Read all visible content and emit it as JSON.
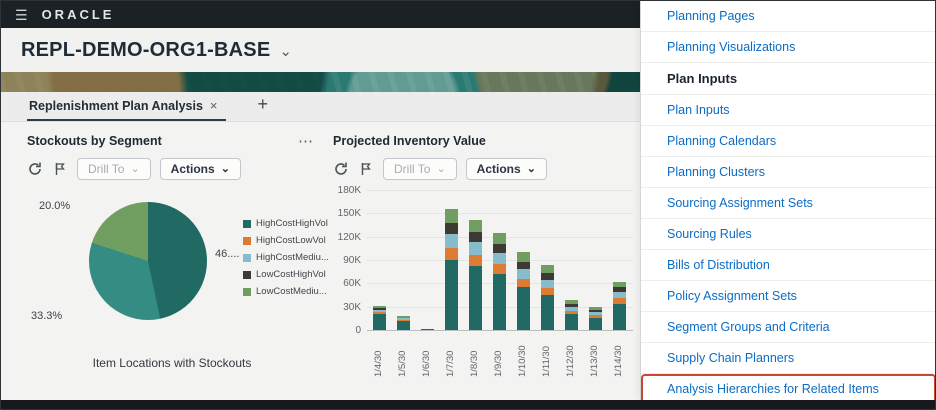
{
  "icons": {
    "hamburger": "☰",
    "chevron_down": "⌄",
    "close": "×",
    "add_tab": "+",
    "overflow": "⋯"
  },
  "topbar": {
    "brand": "ORACLE"
  },
  "header": {
    "plan_title": "REPL-DEMO-ORG1-BASE"
  },
  "tabs": {
    "active_label": "Replenishment Plan Analysis"
  },
  "stockouts_panel": {
    "title": "Stockouts by Segment",
    "drill_to_label": "Drill To",
    "actions_label": "Actions",
    "caption": "Item Locations with Stockouts"
  },
  "projected_panel": {
    "title": "Projected Inventory Value",
    "drill_to_label": "Drill To",
    "actions_label": "Actions"
  },
  "chart_data": [
    {
      "type": "pie",
      "title": "Stockouts by Segment",
      "values": [
        46.7,
        33.3,
        20.0
      ],
      "slice_labels": [
        "46....",
        "33.3%",
        "20.0%"
      ],
      "colors": [
        "#206a63",
        "#348c83",
        "#709e60"
      ],
      "legend_position": "right",
      "legend": [
        {
          "label": "HighCostHighVol",
          "color": "#206a63"
        },
        {
          "label": "HighCostLowVol",
          "color": "#dd7b33"
        },
        {
          "label": "HighCostMediu...",
          "color": "#86bccb"
        },
        {
          "label": "LowCostHighVol",
          "color": "#3d3933"
        },
        {
          "label": "LowCostMediu...",
          "color": "#709e60"
        }
      ],
      "caption": "Item Locations with Stockouts"
    },
    {
      "type": "bar",
      "stacked": true,
      "title": "Projected Inventory Value",
      "categories": [
        "1/4/30",
        "1/5/30",
        "1/6/30",
        "1/7/30",
        "1/8/30",
        "1/9/30",
        "1/10/30",
        "1/11/30",
        "1/12/30",
        "1/13/30",
        "1/14/30"
      ],
      "unit": "K",
      "ylim": [
        0,
        180000
      ],
      "grid": true,
      "legend_position": "hidden",
      "yticks": [
        {
          "label": "180K",
          "value": 180
        },
        {
          "label": "150K",
          "value": 150
        },
        {
          "label": "120K",
          "value": 120
        },
        {
          "label": "90K",
          "value": 90
        },
        {
          "label": "60K",
          "value": 60
        },
        {
          "label": "30K",
          "value": 30
        },
        {
          "label": "0",
          "value": 0
        }
      ],
      "series": [
        {
          "name": "HighCostHighVol",
          "color": "#206a63",
          "values": [
            20,
            11,
            1,
            90,
            82,
            72,
            55,
            45,
            20,
            15,
            34
          ]
        },
        {
          "name": "HighCostLowVol",
          "color": "#dd7b33",
          "values": [
            3,
            2,
            0,
            16,
            15,
            13,
            11,
            9,
            5,
            4,
            7
          ]
        },
        {
          "name": "HighCostMediumVol",
          "color": "#86bccb",
          "values": [
            3,
            2,
            0,
            18,
            16,
            14,
            12,
            10,
            5,
            4,
            8
          ]
        },
        {
          "name": "LowCostHighVol",
          "color": "#3d3933",
          "values": [
            2,
            1,
            0,
            14,
            13,
            12,
            10,
            9,
            4,
            3,
            6
          ]
        },
        {
          "name": "LowCostMediumVol",
          "color": "#709e60",
          "values": [
            3,
            2,
            0,
            17,
            16,
            14,
            12,
            10,
            5,
            4,
            7
          ]
        }
      ]
    }
  ],
  "menu": {
    "link_color": "#0b6cc4",
    "highlight_color": "#c74634",
    "items": [
      {
        "label": "Planning Pages",
        "type": "link"
      },
      {
        "label": "Planning Visualizations",
        "type": "link"
      },
      {
        "label": "Plan Inputs",
        "type": "header"
      },
      {
        "label": "Plan Inputs",
        "type": "link"
      },
      {
        "label": "Planning Calendars",
        "type": "link"
      },
      {
        "label": "Planning Clusters",
        "type": "link"
      },
      {
        "label": "Sourcing Assignment Sets",
        "type": "link"
      },
      {
        "label": "Sourcing Rules",
        "type": "link"
      },
      {
        "label": "Bills of Distribution",
        "type": "link"
      },
      {
        "label": "Policy Assignment Sets",
        "type": "link"
      },
      {
        "label": "Segment Groups and Criteria",
        "type": "link"
      },
      {
        "label": "Supply Chain Planners",
        "type": "link"
      },
      {
        "label": "Analysis Hierarchies for Related Items",
        "type": "link",
        "highlighted": true
      }
    ]
  }
}
